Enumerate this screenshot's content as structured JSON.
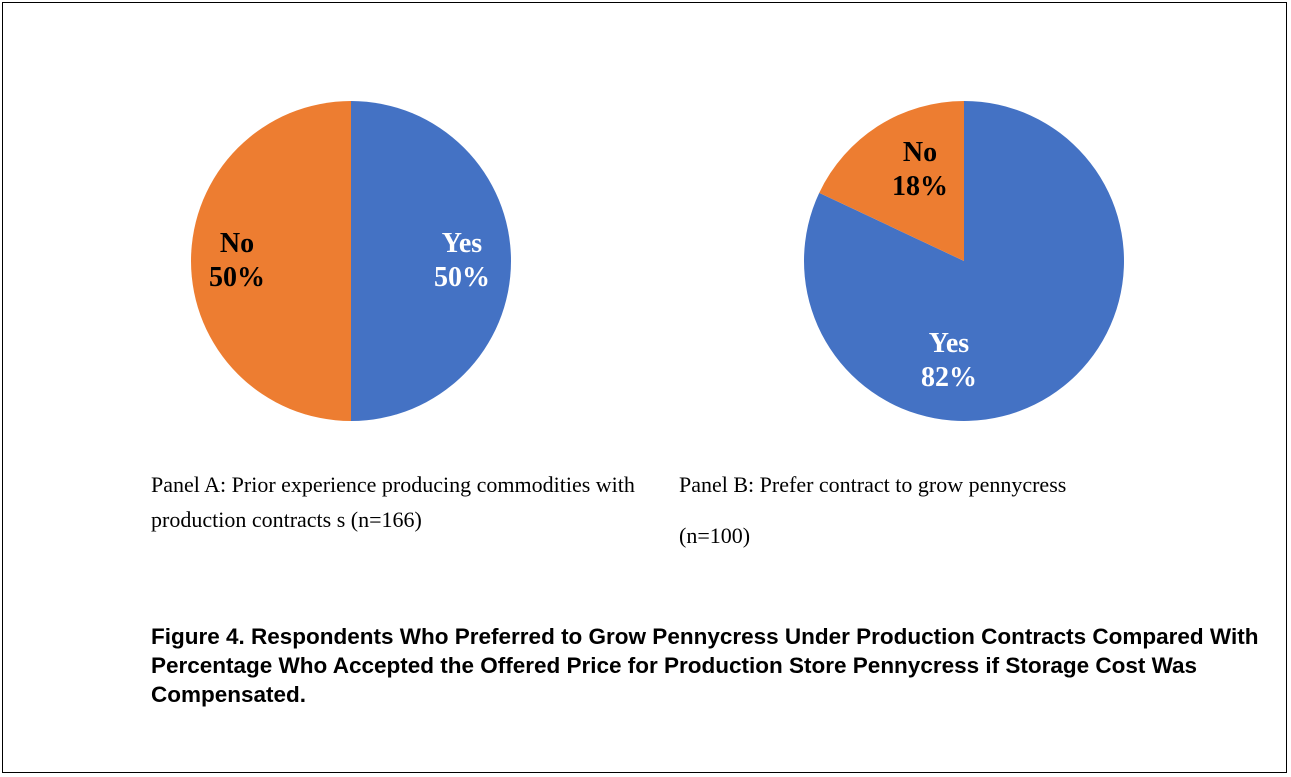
{
  "chart_data": [
    {
      "type": "pie",
      "panel": "A",
      "caption": "Panel A: Prior experience producing commodities with production contracts s (n=166)",
      "slices": [
        {
          "label": "Yes",
          "value": 50,
          "value_label": "50%",
          "color": "#4472C4"
        },
        {
          "label": "No",
          "value": 50,
          "value_label": "50%",
          "color": "#ED7D31"
        }
      ]
    },
    {
      "type": "pie",
      "panel": "B",
      "caption_line1": "Panel B: Prefer contract to grow pennycress",
      "caption_line2": "(n=100)",
      "slices": [
        {
          "label": "Yes",
          "value": 82,
          "value_label": "82%",
          "color": "#4472C4"
        },
        {
          "label": "No",
          "value": 18,
          "value_label": "18%",
          "color": "#ED7D31"
        }
      ]
    }
  ],
  "figure_title": "Figure 4. Respondents Who Preferred to Grow Pennycress Under Production Contracts Compared With Percentage Who Accepted the Offered Price for Production Store Pennycress if Storage Cost Was Compensated."
}
